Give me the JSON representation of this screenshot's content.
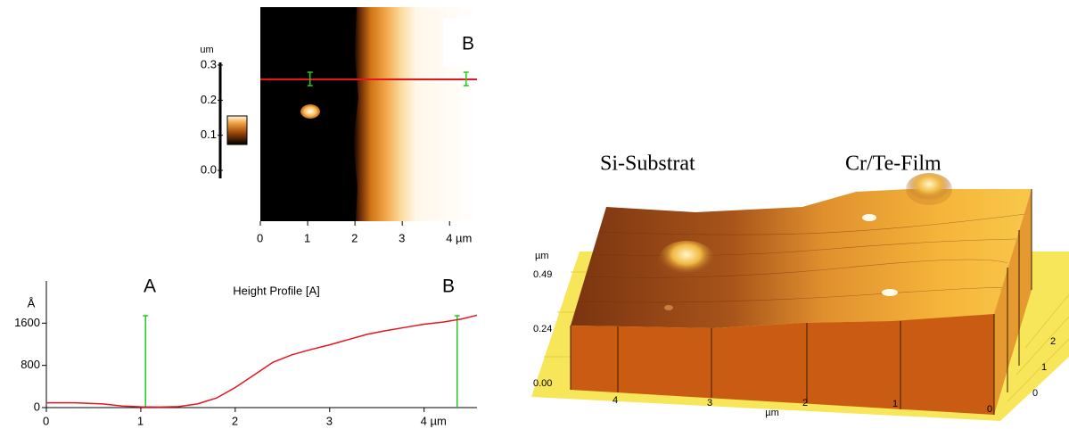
{
  "chart_data": [
    {
      "type": "image",
      "xlim": [
        0,
        4.58
      ],
      "xticks": [
        0,
        1,
        2,
        3,
        {
          "value": 4,
          "label": "4 µm"
        }
      ],
      "colorbar_label": "um",
      "zlim": [
        0,
        0.3
      ],
      "zticks": [
        {
          "value": 0,
          "label": "0.0"
        },
        0.1,
        0.2,
        0.3
      ],
      "annotations": [
        "A",
        "B"
      ],
      "section_marker": "A",
      "section_color": "#e8141e",
      "cursors": [
        1.05,
        4.35
      ],
      "cursor_color": "#22cc22"
    },
    {
      "type": "line",
      "title": "Height Profile [A]",
      "y_label": "Å",
      "xlim": [
        0,
        4.56
      ],
      "ylim": [
        0,
        2400
      ],
      "xticks": [
        0,
        1,
        2,
        3,
        {
          "value": 4,
          "label": "4 µm"
        }
      ],
      "yticks": [
        0,
        800,
        1600
      ],
      "annotations": [
        "A",
        "B"
      ],
      "cursors": [
        1.05,
        4.35
      ],
      "cursor_color": "#22cc22",
      "color": "#e8141e",
      "x": [
        0,
        0.3,
        0.6,
        0.8,
        1.0,
        1.2,
        1.4,
        1.6,
        1.8,
        2.0,
        2.2,
        2.4,
        2.6,
        2.8,
        3.0,
        3.2,
        3.4,
        3.6,
        3.8,
        4.0,
        4.2,
        4.4,
        4.56
      ],
      "values": [
        90,
        90,
        70,
        30,
        15,
        10,
        20,
        70,
        180,
        380,
        620,
        860,
        1000,
        1100,
        1190,
        1290,
        1390,
        1460,
        1520,
        1580,
        1620,
        1680,
        1750
      ]
    }
  ],
  "render_3d": {
    "labels": [
      "Si-Substrat",
      "Cr/Te-Film"
    ],
    "z_unit": "µm",
    "z_ticks": [
      "0.49",
      "0.24",
      "0.00"
    ],
    "x_unit": "µm",
    "x_ticks": [
      "4",
      "3",
      "2",
      "1",
      "0"
    ],
    "y_ticks": [
      "2",
      "1",
      "0"
    ]
  }
}
